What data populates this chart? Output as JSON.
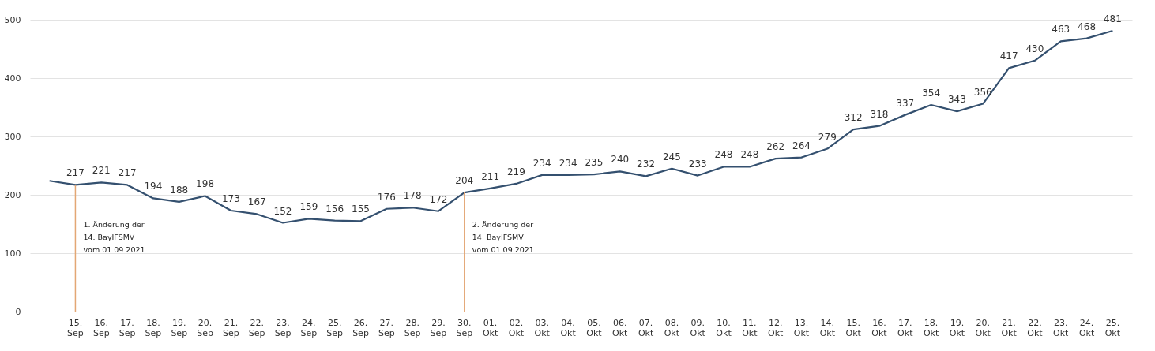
{
  "chart_data": {
    "type": "line",
    "categories": [
      null,
      "15. Sep",
      "16. Sep",
      "17. Sep",
      "18. Sep",
      "19. Sep",
      "20. Sep",
      "21. Sep",
      "22. Sep",
      "23. Sep",
      "24. Sep",
      "25. Sep",
      "26. Sep",
      "27. Sep",
      "28. Sep",
      "29. Sep",
      "30. Sep",
      "01. Okt",
      "02. Okt",
      "03. Okt",
      "04. Okt",
      "05. Okt",
      "06. Okt",
      "07. Okt",
      "08. Okt",
      "09. Okt",
      "10. Okt",
      "11. Okt",
      "12. Okt",
      "13. Okt",
      "14. Okt",
      "15. Okt",
      "16. Okt",
      "17. Okt",
      "18. Okt",
      "19. Okt",
      "20. Okt",
      "21. Okt",
      "22. Okt",
      "23. Okt",
      "24. Okt",
      "25. Okt"
    ],
    "series": [
      {
        "color": "#34506f",
        "values": [
          224,
          217,
          221,
          217,
          194,
          188,
          198,
          173,
          167,
          152,
          159,
          156,
          155,
          176,
          178,
          172,
          204,
          211,
          219,
          234,
          234,
          235,
          240,
          232,
          245,
          233,
          248,
          248,
          262,
          264,
          279,
          312,
          318,
          337,
          354,
          343,
          356,
          417,
          430,
          463,
          468,
          481
        ],
        "value_labels": [
          null,
          "217",
          "221",
          "217",
          "194",
          "188",
          "198",
          "173",
          "167",
          "152",
          "159",
          "156",
          "155",
          "176",
          "178",
          "172",
          "204",
          "211",
          "219",
          "234",
          "234",
          "235",
          "240",
          "232",
          "245",
          "233",
          "248",
          "248",
          "262",
          "264",
          "279",
          "312",
          "318",
          "337",
          "354",
          "343",
          "356",
          "417",
          "430",
          "463",
          "468",
          "481"
        ]
      }
    ],
    "ylim": [
      0,
      500
    ],
    "yticks": [
      0,
      100,
      200,
      300,
      400,
      500
    ],
    "grid": "y",
    "marker": "none",
    "line_style": "solid",
    "ref_lines": [
      {
        "axis": "x",
        "value": "15. Sep",
        "label": "1. Änderung der\n14. BayIFSMV\nvom 01.09.2021",
        "color": "#e3a774"
      },
      {
        "axis": "x",
        "value": "30. Sep",
        "label": "2. Änderung der\n14. BayIFSMV\nvom 01.09.2021",
        "color": "#e3a774"
      }
    ]
  }
}
